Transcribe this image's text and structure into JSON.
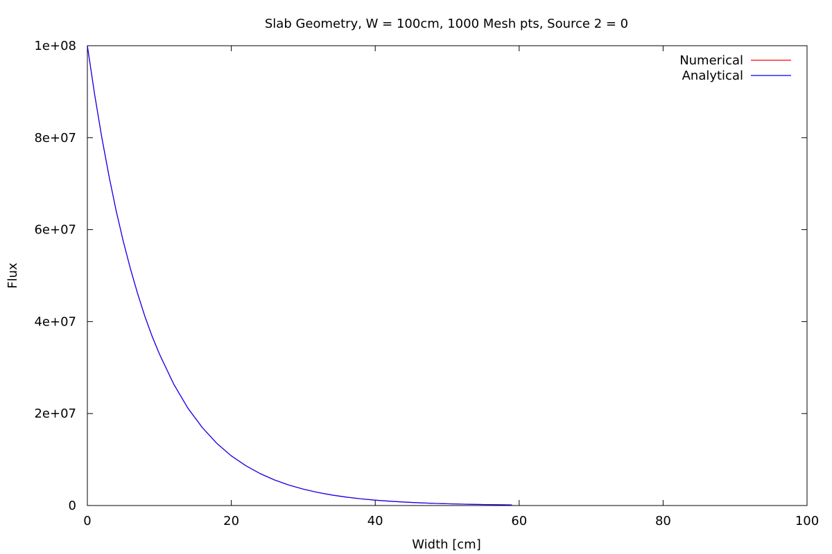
{
  "chart_data": {
    "type": "line",
    "title": "Slab Geometry, W = 100cm, 1000 Mesh pts, Source 2 = 0",
    "xlabel": "Width [cm]",
    "ylabel": "Flux",
    "xlim": [
      0,
      100
    ],
    "ylim": [
      0,
      100000000
    ],
    "x_ticks": [
      "0",
      "20",
      "40",
      "60",
      "80",
      "100"
    ],
    "y_ticks": [
      "0",
      "2e+07",
      "4e+07",
      "6e+07",
      "8e+07",
      "1e+08"
    ],
    "legend_position": "top-right",
    "grid": false,
    "x": [
      0,
      1,
      2,
      3,
      4,
      5,
      6,
      7,
      8,
      9,
      10,
      12,
      14,
      16,
      18,
      20,
      22,
      24,
      26,
      28,
      30,
      32,
      34,
      36,
      38,
      40,
      42,
      44,
      46,
      48,
      50,
      52,
      54,
      56,
      58,
      59
    ],
    "series": [
      {
        "name": "Numerical",
        "color": "#ff0000",
        "values": [
          100000000,
          89500000,
          80100000,
          71700000,
          64100000,
          57400000,
          51400000,
          46000000,
          41100000,
          36800000,
          33000000,
          26400000,
          21100000,
          16900000,
          13500000,
          10800000,
          8680000,
          6950000,
          5560000,
          4450000,
          3570000,
          2850000,
          2280000,
          1830000,
          1460000,
          1170000,
          940000,
          750000,
          600000,
          480000,
          385000,
          308000,
          247000,
          197000,
          158000,
          141000
        ]
      },
      {
        "name": "Analytical",
        "color": "#0000ff",
        "values": [
          100000000,
          89500000,
          80100000,
          71700000,
          64100000,
          57400000,
          51400000,
          46000000,
          41100000,
          36800000,
          33000000,
          26400000,
          21100000,
          16900000,
          13500000,
          10800000,
          8680000,
          6950000,
          5560000,
          4450000,
          3570000,
          2850000,
          2280000,
          1830000,
          1460000,
          1170000,
          940000,
          750000,
          600000,
          480000,
          385000,
          308000,
          247000,
          197000,
          158000,
          141000
        ]
      }
    ]
  }
}
